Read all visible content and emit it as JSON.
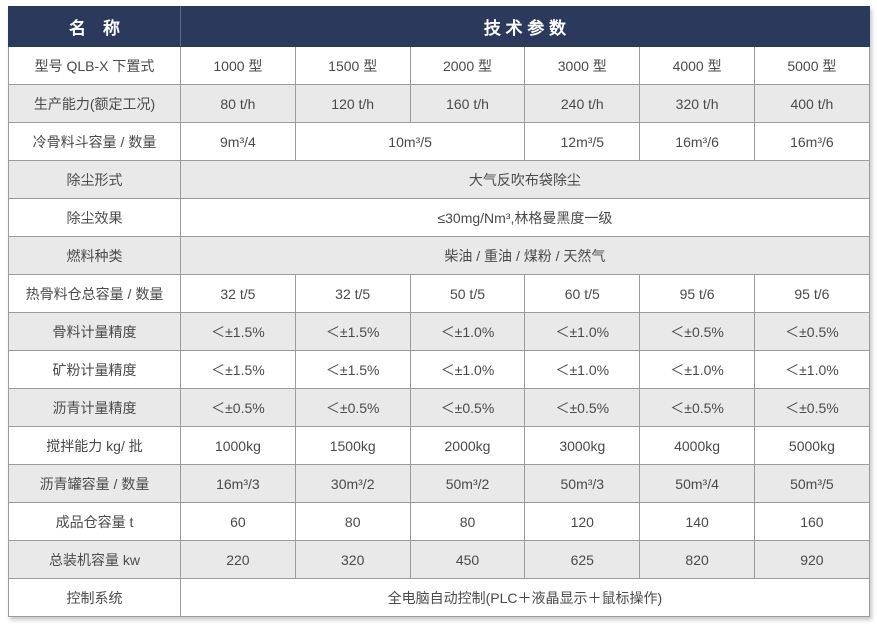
{
  "colors": {
    "header_bg": "#2b3a5c",
    "header_text": "#ffffff",
    "row_shade": "#e9e9e9",
    "border": "#9c9c9c",
    "text": "#4a4a4a"
  },
  "table": {
    "header": {
      "name_label": "名　称",
      "params_label": "技 术 参 数"
    },
    "rows": [
      {
        "label": "型号 QLB-X 下置式",
        "shaded": false,
        "cells": [
          {
            "text": "1000 型"
          },
          {
            "text": "1500 型"
          },
          {
            "text": "2000 型"
          },
          {
            "text": "3000 型"
          },
          {
            "text": "4000 型"
          },
          {
            "text": "5000 型"
          }
        ]
      },
      {
        "label": "生产能力(额定工况)",
        "shaded": true,
        "cells": [
          {
            "text": "80 t/h"
          },
          {
            "text": "120 t/h"
          },
          {
            "text": "160 t/h"
          },
          {
            "text": "240 t/h"
          },
          {
            "text": "320 t/h"
          },
          {
            "text": "400 t/h"
          }
        ]
      },
      {
        "label": "冷骨料斗容量 / 数量",
        "shaded": false,
        "cells": [
          {
            "text": "9m³/4"
          },
          {
            "text": "10m³/5",
            "span": 2
          },
          {
            "text": "12m³/5"
          },
          {
            "text": "16m³/6"
          },
          {
            "text": "16m³/6"
          }
        ]
      },
      {
        "label": "除尘形式",
        "shaded": true,
        "cells": [
          {
            "text": "大气反吹布袋除尘",
            "span": 6
          }
        ]
      },
      {
        "label": "除尘效果",
        "shaded": false,
        "cells": [
          {
            "text": "≤30mg/Nm³,林格曼黑度一级",
            "span": 6
          }
        ]
      },
      {
        "label": "燃料种类",
        "shaded": true,
        "cells": [
          {
            "text": "柴油 / 重油 / 煤粉 / 天然气",
            "span": 6
          }
        ]
      },
      {
        "label": "热骨料仓总容量 / 数量",
        "shaded": false,
        "cells": [
          {
            "text": "32 t/5"
          },
          {
            "text": "32 t/5"
          },
          {
            "text": "50 t/5"
          },
          {
            "text": "60 t/5"
          },
          {
            "text": "95 t/6"
          },
          {
            "text": "95 t/6"
          }
        ]
      },
      {
        "label": "骨料计量精度",
        "shaded": true,
        "cells": [
          {
            "text": "＜±1.5%"
          },
          {
            "text": "＜±1.5%"
          },
          {
            "text": "＜±1.0%"
          },
          {
            "text": "＜±1.0%"
          },
          {
            "text": "＜±0.5%"
          },
          {
            "text": "＜±0.5%"
          }
        ]
      },
      {
        "label": "矿粉计量精度",
        "shaded": false,
        "cells": [
          {
            "text": "＜±1.5%"
          },
          {
            "text": "＜±1.5%"
          },
          {
            "text": "＜±1.0%"
          },
          {
            "text": "＜±1.0%"
          },
          {
            "text": "＜±1.0%"
          },
          {
            "text": "＜±1.0%"
          }
        ]
      },
      {
        "label": "沥青计量精度",
        "shaded": true,
        "cells": [
          {
            "text": "＜±0.5%"
          },
          {
            "text": "＜±0.5%"
          },
          {
            "text": "＜±0.5%"
          },
          {
            "text": "＜±0.5%"
          },
          {
            "text": "＜±0.5%"
          },
          {
            "text": "＜±0.5%"
          }
        ]
      },
      {
        "label": "搅拌能力 kg/ 批",
        "shaded": false,
        "cells": [
          {
            "text": "1000kg"
          },
          {
            "text": "1500kg"
          },
          {
            "text": "2000kg"
          },
          {
            "text": "3000kg"
          },
          {
            "text": "4000kg"
          },
          {
            "text": "5000kg"
          }
        ]
      },
      {
        "label": "沥青罐容量 / 数量",
        "shaded": true,
        "cells": [
          {
            "text": "16m³/3"
          },
          {
            "text": "30m³/2"
          },
          {
            "text": "50m³/2"
          },
          {
            "text": "50m³/3"
          },
          {
            "text": "50m³/4"
          },
          {
            "text": "50m³/5"
          }
        ]
      },
      {
        "label": "成品仓容量 t",
        "shaded": false,
        "cells": [
          {
            "text": "60"
          },
          {
            "text": "80"
          },
          {
            "text": "80"
          },
          {
            "text": "120"
          },
          {
            "text": "140"
          },
          {
            "text": "160"
          }
        ]
      },
      {
        "label": "总装机容量 kw",
        "shaded": true,
        "cells": [
          {
            "text": "220"
          },
          {
            "text": "320"
          },
          {
            "text": "450"
          },
          {
            "text": "625"
          },
          {
            "text": "820"
          },
          {
            "text": "920"
          }
        ]
      },
      {
        "label": "控制系统",
        "shaded": false,
        "cells": [
          {
            "text": "全电脑自动控制(PLC＋液晶显示＋鼠标操作)",
            "span": 6
          }
        ]
      }
    ]
  }
}
